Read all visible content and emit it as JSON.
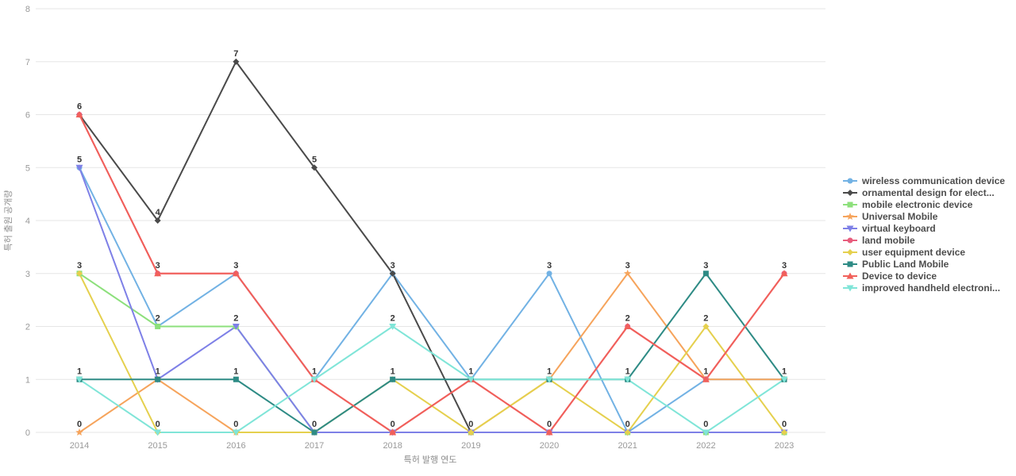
{
  "chart_data": {
    "type": "line",
    "title": "",
    "xlabel": "특허 발행 연도",
    "ylabel": "특허 출원 공개량",
    "categories": [
      "2014",
      "2015",
      "2016",
      "2017",
      "2018",
      "2019",
      "2020",
      "2021",
      "2022",
      "2023"
    ],
    "ylim": [
      0,
      8
    ],
    "yticks": [
      0,
      1,
      2,
      3,
      4,
      5,
      6,
      7,
      8
    ],
    "grid": true,
    "legend_position": "right",
    "point_labels": "one bold label per distinct value at each year",
    "series": [
      {
        "name": "wireless communication device",
        "color": "#72b2e4",
        "marker": "circle",
        "values": [
          5,
          2,
          3,
          1,
          3,
          1,
          3,
          0,
          1,
          1
        ]
      },
      {
        "name": "ornamental design for elect...",
        "color": "#4a4a4a",
        "marker": "diamond",
        "values": [
          6,
          4,
          7,
          5,
          3,
          0,
          null,
          null,
          null,
          null
        ]
      },
      {
        "name": "mobile electronic device",
        "color": "#8de07c",
        "marker": "square",
        "values": [
          3,
          2,
          2,
          0,
          0,
          0,
          0,
          0,
          0,
          0
        ]
      },
      {
        "name": "Universal Mobile",
        "color": "#f6a45c",
        "marker": "star",
        "values": [
          0,
          1,
          0,
          0,
          0,
          0,
          1,
          3,
          1,
          1
        ]
      },
      {
        "name": "virtual keyboard",
        "color": "#7e80e7",
        "marker": "triangle-down",
        "values": [
          5,
          1,
          2,
          0,
          0,
          0,
          0,
          0,
          0,
          0
        ]
      },
      {
        "name": "land mobile",
        "color": "#e85d7d",
        "marker": "circle",
        "values": [
          6,
          3,
          3,
          1,
          0,
          1,
          0,
          2,
          1,
          3
        ]
      },
      {
        "name": "user equipment device",
        "color": "#e5d04e",
        "marker": "diamond",
        "values": [
          3,
          0,
          0,
          0,
          1,
          0,
          1,
          0,
          2,
          0
        ]
      },
      {
        "name": "Public Land Mobile",
        "color": "#2e8b85",
        "marker": "square",
        "values": [
          1,
          1,
          1,
          0,
          1,
          1,
          1,
          1,
          3,
          1
        ]
      },
      {
        "name": "Device to device",
        "color": "#f1605a",
        "marker": "triangle-up",
        "values": [
          6,
          3,
          3,
          1,
          0,
          1,
          0,
          2,
          1,
          3
        ]
      },
      {
        "name": "improved handheld electroni...",
        "color": "#80e5d8",
        "marker": "triangle-down",
        "values": [
          1,
          0,
          0,
          1,
          2,
          1,
          1,
          1,
          0,
          1
        ]
      }
    ],
    "style": {
      "background": "#ffffff",
      "gridline_color": "#e6e6e6",
      "tick_label_color": "#999999",
      "axis_title_color": "#8c8c8c",
      "value_label_color": "#333333"
    }
  }
}
